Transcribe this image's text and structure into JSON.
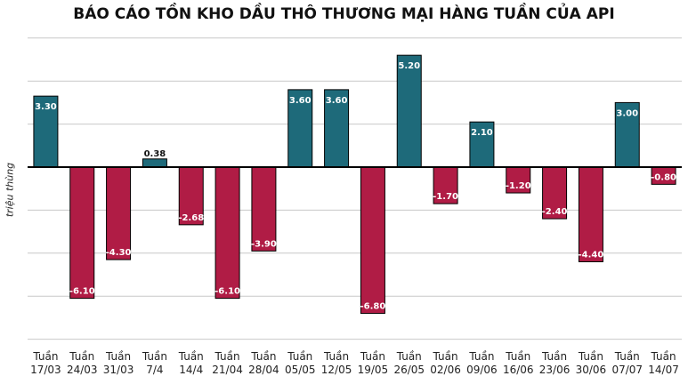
{
  "title": "BÁO CÁO TỒN KHO DẦU THÔ THƯƠNG MẠI HÀNG TUẦN CỦA API",
  "colors": {
    "positive": "#1e6a7a",
    "negative": "#b01c45",
    "grid": "#c8c8c8",
    "axis": "#000000"
  },
  "chart_data": {
    "type": "bar",
    "title": "BÁO CÁO TỒN KHO DẦU THÔ THƯƠNG MẠI HÀNG TUẦN CỦA API",
    "ylabel": "triệu thùng",
    "xlabel": "",
    "ylim": [
      -8,
      6
    ],
    "grid": true,
    "categories": [
      [
        "Tuần",
        "17/03"
      ],
      [
        "Tuần",
        "24/03"
      ],
      [
        "Tuần",
        "31/03"
      ],
      [
        "Tuần",
        "7/4"
      ],
      [
        "Tuần",
        "14/4"
      ],
      [
        "Tuần",
        "21/04"
      ],
      [
        "Tuần",
        "28/04"
      ],
      [
        "Tuần",
        "05/05"
      ],
      [
        "Tuần",
        "12/05"
      ],
      [
        "Tuần",
        "19/05"
      ],
      [
        "Tuần",
        "26/05"
      ],
      [
        "Tuần",
        "02/06"
      ],
      [
        "Tuần",
        "09/06"
      ],
      [
        "Tuần",
        "16/06"
      ],
      [
        "Tuần",
        "23/06"
      ],
      [
        "Tuần",
        "30/06"
      ],
      [
        "Tuần",
        "07/07"
      ],
      [
        "Tuần",
        "14/07"
      ]
    ],
    "values": [
      3.3,
      -6.1,
      -4.3,
      0.38,
      -2.68,
      -6.1,
      -3.9,
      3.6,
      3.6,
      -6.8,
      5.2,
      -1.7,
      2.1,
      -1.2,
      -2.4,
      -4.4,
      3.0,
      -0.8
    ],
    "data_labels": [
      "3.30",
      "-6.10",
      "-4.30",
      "0.38",
      "-2.68",
      "-6.10",
      "-3.90",
      "3.60",
      "3.60",
      "-6.80",
      "5.20",
      "-1.70",
      "2.10",
      "-1.20",
      "-2.40",
      "-4.40",
      "3.00",
      "-0.80"
    ]
  }
}
